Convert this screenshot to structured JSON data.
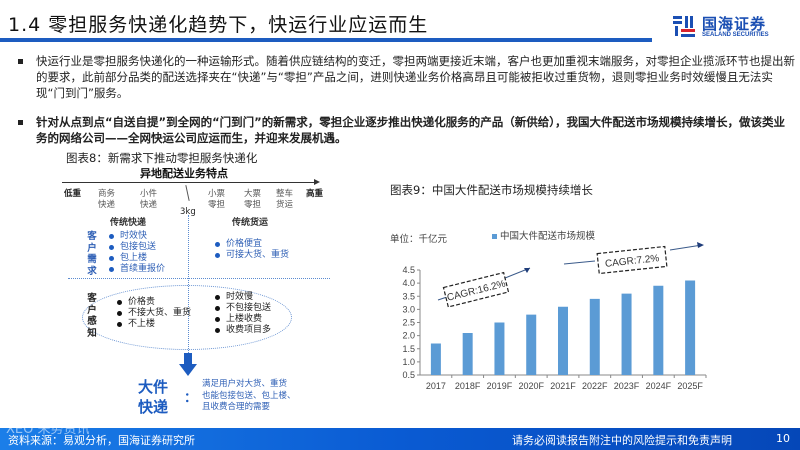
{
  "header": {
    "title": "1.4 零担服务快递化趋势下，快运行业应运而生",
    "logo_cn": "国海证券",
    "logo_en": "SEALAND SECURITIES",
    "accent_color": "#1d5cc0"
  },
  "bullets": [
    {
      "text": "快运行业是零担服务快递化的一种运输形式。随着供应链结构的变迁，零担两端更接近末端，客户也更加重视末端服务，对零担企业揽派环节也提出新的要求，此前部分品类的配送选择夹在“快递”与“零担”产品之间，进则快递业务价格高昂且可能被拒收过重货物，退则零担业务时效缓慢且无法实现“门到门”服务。",
      "bold": false
    },
    {
      "text": "针对从点到点“自送自提”到全网的“门到门”的新需求，零担企业逐步推出快递化服务的产品（新供给），我国大件配送市场规模持续增长，做该类业务的网络公司——全网快运公司应运而生，并迎来发展机遇。",
      "bold": true
    }
  ],
  "figure8": {
    "title": "图表8：新需求下推动零担服务快递化",
    "heading": "异地配送业务特点",
    "axis_left": "低重",
    "axis_right": "高重",
    "axis_items": [
      {
        "label": "商务\n快递",
        "x": 38
      },
      {
        "label": "小件\n快递",
        "x": 80
      },
      {
        "label": "小票\n零担",
        "x": 148
      },
      {
        "label": "大票\n零担",
        "x": 185
      },
      {
        "label": "整车\n货运",
        "x": 220
      }
    ],
    "threshold": "3kg",
    "category_left": "传统快递",
    "category_right": "传统货运",
    "demand_label": "客户需求",
    "demand_left": [
      "时效快",
      "包接包送",
      "包上楼",
      "首续重报价"
    ],
    "demand_right": [
      "价格便宜",
      "可接大货、重货"
    ],
    "perception_label": "客户感知",
    "perception_left": [
      "价格贵",
      "不接大货、重货",
      "不上楼"
    ],
    "perception_right": [
      "时效慢",
      "不包接包送",
      "上楼收费",
      "收费项目多"
    ],
    "result_title": "大件\n快递",
    "result_colon": "：",
    "result_desc": "满足用户对大货、重货\n也能包接包送、包上楼、\n且收费合理的需要"
  },
  "figure9": {
    "title": "图表9：中国大件配送市场规模持续增长",
    "unit": "单位：千亿元",
    "legend": "中国大件配送市场规模",
    "annotations": [
      "CAGR:16.2%",
      "CAGR:7.2%"
    ]
  },
  "chart_data": {
    "type": "bar",
    "title": "中国大件配送市场规模持续增长",
    "categories": [
      "2017",
      "2018F",
      "2019F",
      "2020F",
      "2021F",
      "2022F",
      "2023F",
      "2024F",
      "2025F"
    ],
    "series": [
      {
        "name": "中国大件配送市场规模",
        "values": [
          1.7,
          2.1,
          2.5,
          2.8,
          3.1,
          3.4,
          3.6,
          3.9,
          4.1
        ],
        "color": "#5b9bd5"
      }
    ],
    "ylabel": "千亿元",
    "xlabel": "",
    "ylim": [
      0.5,
      4.5
    ],
    "yticks": [
      "0.5",
      "1.0",
      "1.5",
      "2.0",
      "2.5",
      "3.0",
      "3.5",
      "4.0",
      "4.5"
    ],
    "annotations": [
      "CAGR:16.2%",
      "CAGR:7.2%"
    ],
    "legend_position": "top",
    "grid": false
  },
  "footer": {
    "source": "资料来源：易观分析，国海证券研究所",
    "disclaimer": "请务必阅读报告附注中的风险提示和免责声明",
    "page": "10",
    "watermark": "XEO 未势资讯"
  }
}
